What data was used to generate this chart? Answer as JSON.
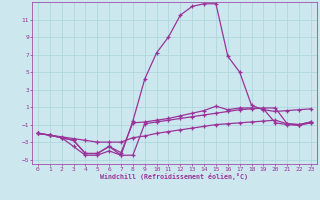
{
  "xlabel": "Windchill (Refroidissement éolien,°C)",
  "background_color": "#cce8ee",
  "grid_color": "#aad4dc",
  "line_color": "#993399",
  "xlim": [
    -0.5,
    23.5
  ],
  "ylim": [
    -5.5,
    13.0
  ],
  "xticks": [
    0,
    1,
    2,
    3,
    4,
    5,
    6,
    7,
    8,
    9,
    10,
    11,
    12,
    13,
    14,
    15,
    16,
    17,
    18,
    19,
    20,
    21,
    22,
    23
  ],
  "yticks": [
    -5,
    -3,
    -1,
    1,
    3,
    5,
    7,
    9,
    11
  ],
  "line_peak_x": [
    0,
    1,
    2,
    3,
    4,
    5,
    6,
    7,
    8,
    9,
    10,
    11,
    12,
    13,
    14,
    15,
    16,
    17,
    18,
    19,
    20,
    21,
    22,
    23
  ],
  "line_peak_y": [
    -2.0,
    -2.2,
    -2.5,
    -2.8,
    -4.3,
    -4.3,
    -3.5,
    -4.5,
    -0.6,
    4.2,
    7.2,
    9.0,
    11.5,
    12.5,
    12.8,
    12.8,
    6.8,
    5.0,
    1.2,
    0.7,
    0.5,
    0.6,
    0.7,
    0.8
  ],
  "line_mid1_x": [
    0,
    1,
    2,
    3,
    4,
    5,
    6,
    7,
    8,
    9,
    10,
    11,
    12,
    13,
    14,
    15,
    16,
    17,
    18,
    19,
    20,
    21,
    22,
    23
  ],
  "line_mid1_y": [
    -2.0,
    -2.2,
    -2.5,
    -2.8,
    -4.3,
    -4.3,
    -3.5,
    -4.2,
    -0.8,
    -0.7,
    -0.5,
    -0.3,
    0.0,
    0.3,
    0.6,
    1.1,
    0.7,
    0.9,
    0.9,
    0.8,
    -0.8,
    -1.0,
    -1.1,
    -0.8
  ],
  "line_mid2_x": [
    0,
    1,
    2,
    3,
    4,
    5,
    6,
    7,
    8,
    9,
    10,
    11,
    12,
    13,
    14,
    15,
    16,
    17,
    18,
    19,
    20,
    21,
    22,
    23
  ],
  "line_mid2_y": [
    -2.0,
    -2.2,
    -2.5,
    -3.5,
    -4.5,
    -4.5,
    -4.0,
    -4.5,
    -4.5,
    -0.9,
    -0.7,
    -0.5,
    -0.3,
    -0.1,
    0.1,
    0.3,
    0.5,
    0.7,
    0.8,
    0.9,
    0.9,
    -0.9,
    -1.0,
    -0.7
  ],
  "line_flat_x": [
    0,
    1,
    2,
    3,
    4,
    5,
    6,
    7,
    8,
    9,
    10,
    11,
    12,
    13,
    14,
    15,
    16,
    17,
    18,
    19,
    20,
    21,
    22,
    23
  ],
  "line_flat_y": [
    -2.0,
    -2.2,
    -2.4,
    -2.6,
    -2.8,
    -3.0,
    -3.0,
    -3.0,
    -2.5,
    -2.3,
    -2.0,
    -1.8,
    -1.6,
    -1.4,
    -1.2,
    -1.0,
    -0.9,
    -0.8,
    -0.7,
    -0.6,
    -0.5,
    -0.9,
    -1.0,
    -0.7
  ]
}
